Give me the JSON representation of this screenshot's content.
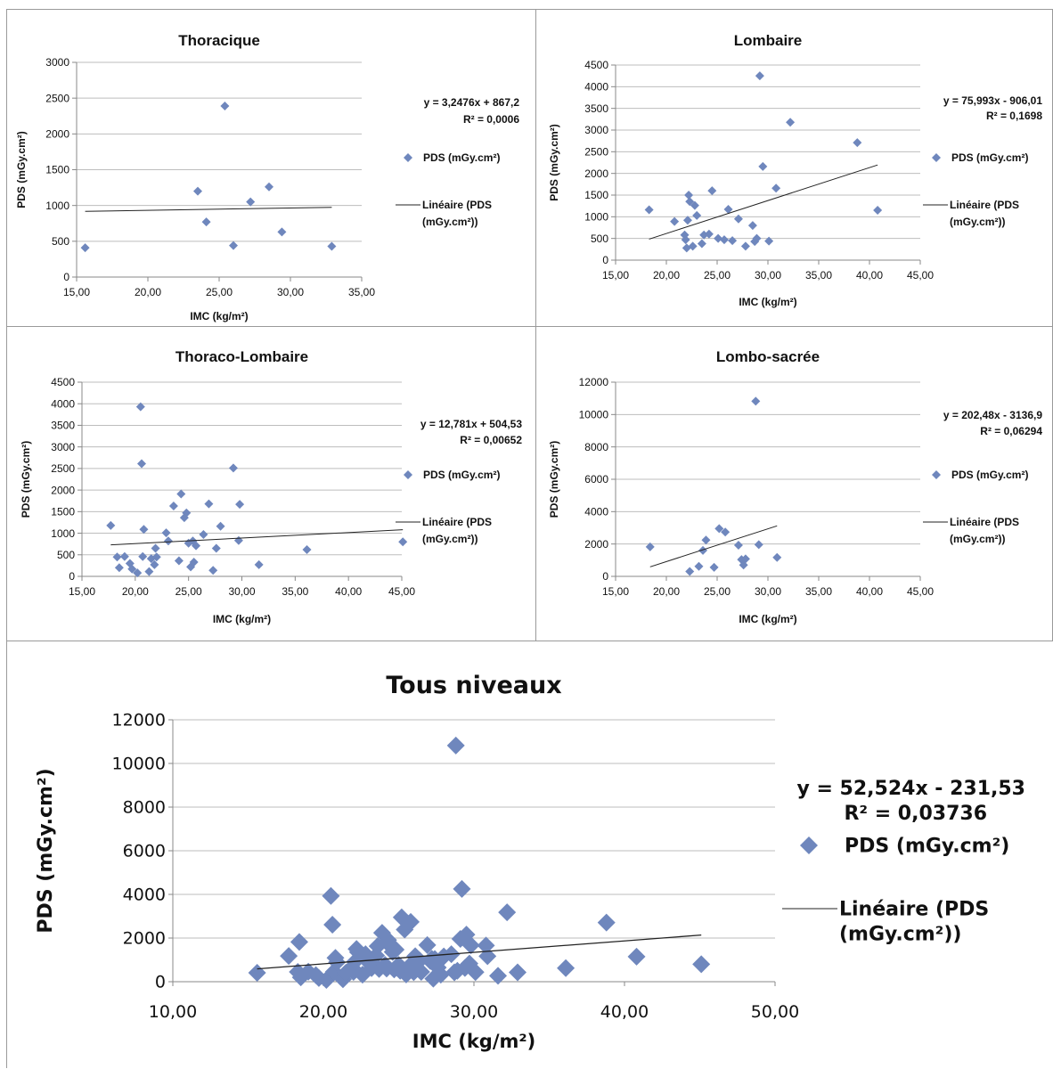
{
  "charts": [
    {
      "title": "Thoracique",
      "xlabel": "IMC (kg/m²)",
      "ylabel": "PDS (mGy.cm²)",
      "xticks": [
        "15,00",
        "20,00",
        "25,00",
        "30,00",
        "35,00"
      ],
      "yticks": [
        "0",
        "500",
        "1000",
        "1500",
        "2000",
        "2500",
        "3000"
      ],
      "equation": "y = 3,2476x + 867,2",
      "r2": "R² = 0,0006",
      "legend_points": "PDS (mGy.cm²)",
      "legend_line_1": "Linéaire (PDS",
      "legend_line_2": "(mGy.cm²))"
    },
    {
      "title": "Lombaire",
      "xlabel": "IMC (kg/m²)",
      "ylabel": "PDS (mGy.cm²)",
      "xticks": [
        "15,00",
        "20,00",
        "25,00",
        "30,00",
        "35,00",
        "40,00",
        "45,00"
      ],
      "yticks": [
        "0",
        "500",
        "1000",
        "1500",
        "2000",
        "2500",
        "3000",
        "3500",
        "4000",
        "4500"
      ],
      "equation": "y = 75,993x - 906,01",
      "r2": "R² = 0,1698",
      "legend_points": "PDS (mGy.cm²)",
      "legend_line_1": "Linéaire (PDS",
      "legend_line_2": "(mGy.cm²))"
    },
    {
      "title": "Thoraco-Lombaire",
      "xlabel": "IMC (kg/m²)",
      "ylabel": "PDS (mGy.cm²)",
      "xticks": [
        "15,00",
        "20,00",
        "25,00",
        "30,00",
        "35,00",
        "40,00",
        "45,00"
      ],
      "yticks": [
        "0",
        "500",
        "1000",
        "1500",
        "2000",
        "2500",
        "3000",
        "3500",
        "4000",
        "4500"
      ],
      "equation": "y = 12,781x + 504,53",
      "r2": "R² = 0,00652",
      "legend_points": "PDS (mGy.cm²)",
      "legend_line_1": "Linéaire (PDS",
      "legend_line_2": "(mGy.cm²))"
    },
    {
      "title": "Lombo-sacrée",
      "xlabel": "IMC (kg/m²)",
      "ylabel": "PDS (mGy.cm²)",
      "xticks": [
        "15,00",
        "20,00",
        "25,00",
        "30,00",
        "35,00",
        "40,00",
        "45,00"
      ],
      "yticks": [
        "0",
        "2000",
        "4000",
        "6000",
        "8000",
        "10000",
        "12000"
      ],
      "equation": "y = 202,48x - 3136,9",
      "r2": "R² = 0,06294",
      "legend_points": "PDS (mGy.cm²)",
      "legend_line_1": "Linéaire (PDS",
      "legend_line_2": "(mGy.cm²))"
    },
    {
      "title": "Tous niveaux",
      "xlabel": "IMC (kg/m²)",
      "ylabel": "PDS (mGy.cm²)",
      "xticks": [
        "10,00",
        "20,00",
        "30,00",
        "40,00",
        "50,00"
      ],
      "yticks": [
        "0",
        "2000",
        "4000",
        "6000",
        "8000",
        "10000",
        "12000"
      ],
      "equation": "y = 52,524x - 231,53",
      "r2": "R² = 0,03736",
      "legend_points": "PDS (mGy.cm²)",
      "legend_line_1": "Linéaire (PDS",
      "legend_line_2": "(mGy.cm²))"
    }
  ],
  "chart_data": [
    {
      "type": "scatter",
      "title": "Thoracique",
      "xlabel": "IMC (kg/m²)",
      "ylabel": "PDS (mGy.cm²)",
      "xlim": [
        15,
        35
      ],
      "ylim": [
        0,
        3000
      ],
      "grid": true,
      "legend": "right",
      "marker_color": "#6f87bd",
      "series": [
        {
          "name": "PDS (mGy.cm²)",
          "x": [
            15.6,
            23.5,
            24.1,
            25.4,
            26.0,
            27.2,
            28.5,
            29.4,
            32.9
          ],
          "y": [
            410,
            1200,
            770,
            2390,
            440,
            1050,
            1260,
            630,
            430
          ]
        }
      ],
      "trendline": {
        "name": "Linéaire (PDS (mGy.cm²))",
        "slope": 3.2476,
        "intercept": 867.2,
        "x_range": [
          15.6,
          32.9
        ]
      }
    },
    {
      "type": "scatter",
      "title": "Lombaire",
      "xlabel": "IMC (kg/m²)",
      "ylabel": "PDS (mGy.cm²)",
      "xlim": [
        15,
        45
      ],
      "ylim": [
        0,
        4500
      ],
      "grid": true,
      "legend": "right",
      "marker_color": "#6f87bd",
      "series": [
        {
          "name": "PDS (mGy.cm²)",
          "x": [
            18.3,
            20.8,
            21.8,
            21.9,
            22.0,
            22.1,
            22.2,
            22.3,
            22.6,
            22.8,
            23.0,
            23.5,
            23.7,
            24.2,
            24.5,
            25.1,
            25.7,
            26.1,
            26.5,
            27.1,
            27.8,
            28.5,
            28.7,
            28.9,
            29.2,
            29.5,
            30.1,
            30.8,
            32.2,
            38.8,
            40.8
          ],
          "y": [
            1160,
            890,
            580,
            470,
            280,
            920,
            1500,
            1350,
            320,
            1260,
            1030,
            380,
            580,
            600,
            1600,
            500,
            470,
            1170,
            450,
            950,
            320,
            800,
            430,
            500,
            4250,
            2160,
            440,
            1660,
            3180,
            2710,
            1150
          ]
        }
      ],
      "trendline": {
        "name": "Linéaire (PDS (mGy.cm²))",
        "slope": 75.993,
        "intercept": -906.01,
        "x_range": [
          18.3,
          40.8
        ]
      }
    },
    {
      "type": "scatter",
      "title": "Thoraco-Lombaire",
      "xlabel": "IMC (kg/m²)",
      "ylabel": "PDS (mGy.cm²)",
      "xlim": [
        15,
        45
      ],
      "ylim": [
        0,
        4500
      ],
      "grid": true,
      "legend": "right",
      "marker_color": "#6f87bd",
      "series": [
        {
          "name": "PDS (mGy.cm²)",
          "x": [
            17.7,
            18.3,
            18.5,
            19.0,
            19.5,
            19.7,
            20.2,
            20.5,
            20.6,
            20.7,
            20.8,
            21.3,
            21.5,
            21.8,
            21.9,
            22.0,
            22.9,
            23.1,
            23.6,
            24.1,
            24.3,
            24.6,
            24.8,
            25.0,
            25.2,
            25.4,
            25.5,
            25.7,
            26.4,
            26.9,
            27.3,
            27.6,
            28.0,
            29.2,
            29.7,
            29.8,
            31.6,
            36.1,
            45.1
          ],
          "y": [
            1180,
            450,
            200,
            460,
            300,
            170,
            80,
            3930,
            2610,
            460,
            1090,
            110,
            410,
            270,
            650,
            450,
            1010,
            820,
            1630,
            360,
            1910,
            1360,
            1470,
            770,
            220,
            820,
            330,
            710,
            970,
            1680,
            140,
            650,
            1160,
            2510,
            830,
            1670,
            270,
            620,
            800
          ]
        }
      ],
      "trendline": {
        "name": "Linéaire (PDS (mGy.cm²))",
        "slope": 12.781,
        "intercept": 504.53,
        "x_range": [
          17.7,
          45.1
        ]
      }
    },
    {
      "type": "scatter",
      "title": "Lombo-sacrée",
      "xlabel": "IMC (kg/m²)",
      "ylabel": "PDS (mGy.cm²)",
      "xlim": [
        15,
        45
      ],
      "ylim": [
        0,
        12000
      ],
      "grid": true,
      "legend": "right",
      "marker_color": "#6f87bd",
      "series": [
        {
          "name": "PDS (mGy.cm²)",
          "x": [
            18.4,
            22.3,
            23.2,
            23.6,
            23.9,
            24.7,
            25.2,
            25.8,
            27.1,
            27.4,
            27.6,
            27.8,
            28.8,
            29.1,
            30.9
          ],
          "y": [
            1820,
            300,
            620,
            1600,
            2240,
            560,
            2950,
            2740,
            1930,
            1040,
            700,
            1080,
            10820,
            1960,
            1170
          ]
        }
      ],
      "trendline": {
        "name": "Linéaire (PDS (mGy.cm²))",
        "slope": 202.48,
        "intercept": -3136.9,
        "x_range": [
          18.4,
          30.9
        ]
      }
    },
    {
      "type": "scatter",
      "title": "Tous niveaux",
      "xlabel": "IMC (kg/m²)",
      "ylabel": "PDS (mGy.cm²)",
      "xlim": [
        10,
        50
      ],
      "ylim": [
        0,
        12000
      ],
      "grid": true,
      "legend": "right",
      "marker_color": "#6f87bd",
      "series": [
        {
          "name": "PDS (mGy.cm²)",
          "x": [
            15.6,
            17.7,
            18.3,
            18.4,
            18.5,
            19.0,
            19.5,
            19.7,
            20.2,
            20.5,
            20.6,
            20.7,
            20.8,
            20.9,
            21.3,
            21.5,
            21.8,
            21.9,
            22.0,
            22.1,
            22.2,
            22.3,
            22.6,
            22.8,
            22.9,
            23.0,
            23.1,
            23.2,
            23.5,
            23.6,
            23.7,
            23.9,
            24.1,
            24.2,
            24.3,
            24.5,
            24.6,
            24.7,
            24.8,
            25.0,
            25.1,
            25.2,
            25.4,
            25.5,
            25.7,
            25.8,
            26.0,
            26.1,
            26.4,
            26.5,
            26.9,
            27.1,
            27.2,
            27.3,
            27.4,
            27.6,
            27.8,
            28.0,
            28.5,
            28.7,
            28.8,
            28.9,
            29.1,
            29.2,
            29.4,
            29.5,
            29.7,
            29.8,
            30.1,
            30.8,
            30.9,
            31.6,
            32.2,
            32.9,
            36.1,
            38.8,
            40.8,
            45.1
          ],
          "y": [
            410,
            1180,
            450,
            1820,
            200,
            460,
            300,
            170,
            80,
            3930,
            2610,
            460,
            1090,
            890,
            110,
            410,
            580,
            650,
            450,
            920,
            1500,
            1350,
            320,
            1260,
            1010,
            1030,
            820,
            620,
            1200,
            1630,
            580,
            2240,
            770,
            600,
            1910,
            1600,
            1360,
            560,
            1470,
            770,
            500,
            2950,
            2390,
            330,
            710,
            2740,
            440,
            1170,
            970,
            450,
            1680,
            950,
            1050,
            140,
            1040,
            650,
            320,
            1160,
            1260,
            430,
            10820,
            500,
            1960,
            4250,
            630,
            2160,
            830,
            1670,
            440,
            1660,
            1170,
            270,
            3180,
            430,
            620,
            2710,
            1150,
            800
          ]
        }
      ],
      "trendline": {
        "name": "Linéaire (PDS (mGy.cm²))",
        "slope": 52.524,
        "intercept": -231.53,
        "x_range": [
          15.6,
          45.1
        ]
      }
    }
  ]
}
